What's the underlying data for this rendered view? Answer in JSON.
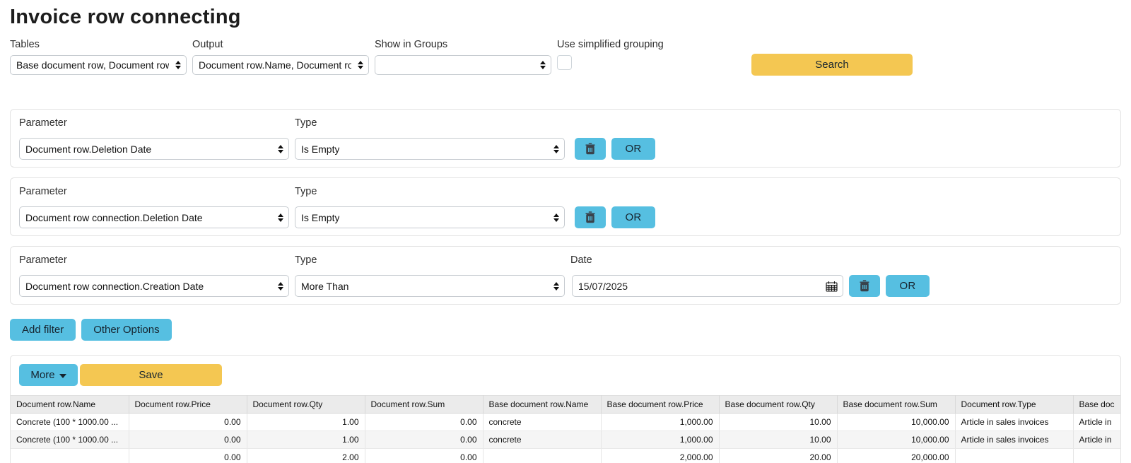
{
  "page": {
    "title": "Invoice row connecting"
  },
  "colors": {
    "accent_teal": "#56bfe1",
    "accent_yellow": "#f4c752",
    "header_gray": "#ebebeb"
  },
  "top_bar": {
    "tables": {
      "label": "Tables",
      "value": "Base document row, Document row"
    },
    "output": {
      "label": "Output",
      "value": "Document row.Name, Document row"
    },
    "show_in_groups": {
      "label": "Show in Groups",
      "value": ""
    },
    "simplified_grouping": {
      "label": "Use simplified grouping",
      "checked": false
    },
    "search_label": "Search"
  },
  "filters": [
    {
      "parameter_label": "Parameter",
      "parameter": "Document row.Deletion Date",
      "type_label": "Type",
      "type": "Is Empty",
      "or_label": "OR"
    },
    {
      "parameter_label": "Parameter",
      "parameter": "Document row connection.Deletion Date",
      "type_label": "Type",
      "type": "Is Empty",
      "or_label": "OR"
    },
    {
      "parameter_label": "Parameter",
      "parameter": "Document row connection.Creation Date",
      "type_label": "Type",
      "type": "More Than",
      "date_label": "Date",
      "date_value": "15/07/2025",
      "or_label": "OR"
    }
  ],
  "filter_actions": {
    "add_filter": "Add filter",
    "other_options": "Other Options"
  },
  "results": {
    "more_label": "More",
    "save_label": "Save",
    "table": {
      "columns": [
        "Document row.Name",
        "Document row.Price",
        "Document row.Qty",
        "Document row.Sum",
        "Base document row.Name",
        "Base document row.Price",
        "Base document row.Qty",
        "Base document row.Sum",
        "Document row.Type",
        "Base doc"
      ],
      "numeric_columns": [
        1,
        2,
        3,
        5,
        6,
        7
      ],
      "rows": [
        [
          "Concrete (100 * 1000.00 ...",
          "0.00",
          "1.00",
          "0.00",
          "concrete",
          "1,000.00",
          "10.00",
          "10,000.00",
          "Article in sales invoices",
          "Article in"
        ],
        [
          "Concrete (100 * 1000.00 ...",
          "0.00",
          "1.00",
          "0.00",
          "concrete",
          "1,000.00",
          "10.00",
          "10,000.00",
          "Article in sales invoices",
          "Article in"
        ],
        [
          "",
          "0.00",
          "2.00",
          "0.00",
          "",
          "2,000.00",
          "20.00",
          "20,000.00",
          "",
          ""
        ]
      ]
    }
  }
}
